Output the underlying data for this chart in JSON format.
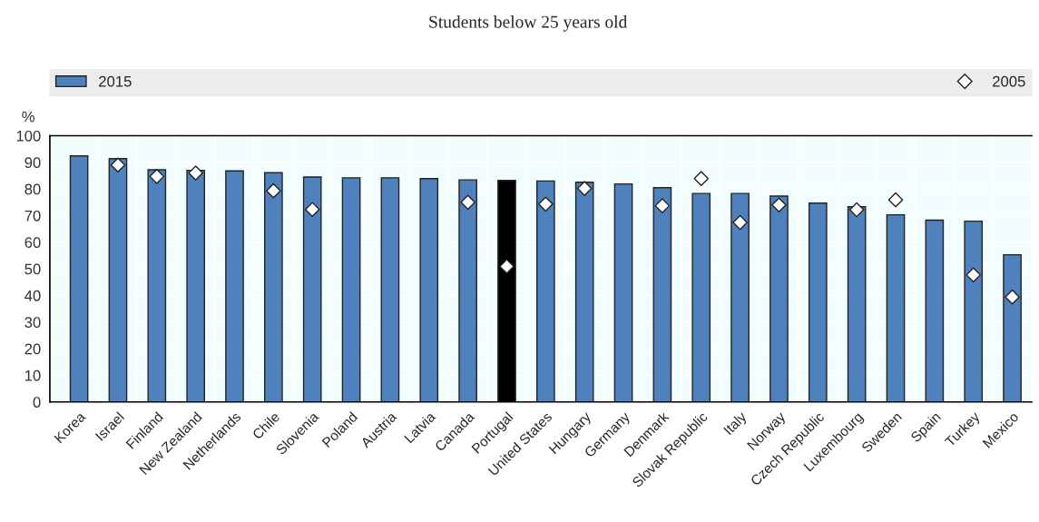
{
  "chart_data": {
    "type": "bar",
    "title": "Students below 25 years old",
    "ylabel": "%",
    "categories": [
      "Korea",
      "Israel",
      "Finland",
      "New Zealand",
      "Netherlands",
      "Chile",
      "Slovenia",
      "Poland",
      "Austria",
      "Latvia",
      "Canada",
      "Portugal",
      "United States",
      "Hungary",
      "Germany",
      "Denmark",
      "Slovak Republic",
      "Italy",
      "Norway",
      "Czech Republic",
      "Luxembourg",
      "Sweden",
      "Spain",
      "Turkey",
      "Mexico"
    ],
    "series": [
      {
        "name": "2015",
        "color": "#4f81bd",
        "colors": [
          "#4f81bd",
          "#4f81bd",
          "#4f81bd",
          "#4f81bd",
          "#4f81bd",
          "#4f81bd",
          "#4f81bd",
          "#4f81bd",
          "#4f81bd",
          "#4f81bd",
          "#4f81bd",
          "#000000",
          "#4f81bd",
          "#4f81bd",
          "#4f81bd",
          "#4f81bd",
          "#4f81bd",
          "#4f81bd",
          "#4f81bd",
          "#4f81bd",
          "#4f81bd",
          "#4f81bd",
          "#4f81bd",
          "#4f81bd",
          "#4f81bd"
        ],
        "values": [
          92.4,
          91.4,
          87.2,
          87.0,
          86.8,
          86.1,
          84.5,
          84.2,
          84.2,
          83.9,
          83.4,
          83.2,
          83.0,
          82.5,
          81.9,
          80.5,
          78.3,
          78.3,
          77.3,
          74.7,
          73.3,
          70.3,
          68.3,
          67.9,
          55.3
        ]
      },
      {
        "name": "2005",
        "type": "scatter",
        "marker": "diamond",
        "color": "#ffffff",
        "values": [
          null,
          89.0,
          84.7,
          86.0,
          null,
          79.3,
          72.3,
          null,
          null,
          null,
          75.0,
          50.9,
          74.3,
          80.2,
          null,
          73.7,
          83.9,
          67.4,
          74.0,
          null,
          72.2,
          75.9,
          null,
          47.7,
          39.4
        ]
      }
    ],
    "ylim": [
      0,
      100
    ],
    "yticks": [
      0,
      10,
      20,
      30,
      40,
      50,
      60,
      70,
      80,
      90,
      100
    ],
    "grid": true,
    "legend": "top"
  }
}
